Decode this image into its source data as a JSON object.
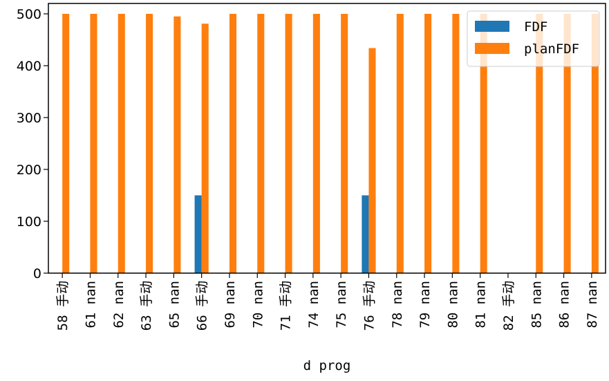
{
  "chart_data": {
    "type": "bar",
    "categories": [
      "58 手动",
      "61 nan",
      "62 nan",
      "63 手动",
      "65 nan",
      "66 手动",
      "69 nan",
      "70 nan",
      "71 手动",
      "74 nan",
      "75 nan",
      "76 手动",
      "78 nan",
      "79 nan",
      "80 nan",
      "81 nan",
      "82 手动",
      "85 nan",
      "86 nan",
      "87 nan"
    ],
    "series": [
      {
        "name": "FDF",
        "color": "#1f77b4",
        "values": [
          0,
          0,
          0,
          0,
          0,
          150,
          0,
          0,
          0,
          0,
          0,
          150,
          0,
          0,
          0,
          0,
          0,
          0,
          0,
          0
        ]
      },
      {
        "name": "planFDF",
        "color": "#ff7f0e",
        "values": [
          500,
          500,
          500,
          500,
          495,
          481,
          500,
          500,
          500,
          500,
          500,
          434,
          500,
          500,
          500,
          500,
          0,
          500,
          500,
          500
        ]
      }
    ],
    "title": "",
    "xlabel": "d prog",
    "ylabel": "",
    "ylim": [
      0,
      520
    ],
    "yticks": [
      0,
      100,
      200,
      300,
      400,
      500
    ],
    "grid": false,
    "legend_position": "top-right"
  }
}
